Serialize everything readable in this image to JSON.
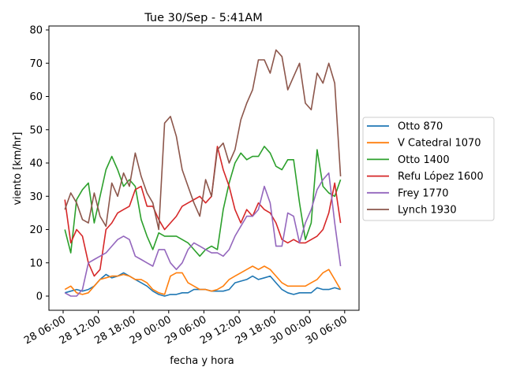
{
  "chart_data": {
    "type": "line",
    "title": "Tue 30/Sep - 5:41AM",
    "xlabel": "fecha y hora",
    "ylabel": "viento [km/hr]",
    "ylim": [
      -2,
      81
    ],
    "yticks": [
      0,
      10,
      20,
      30,
      40,
      50,
      60,
      70,
      80
    ],
    "xticks": [
      "28 06:00",
      "28 12:00",
      "28 18:00",
      "29 00:00",
      "29 06:00",
      "29 12:00",
      "29 18:00",
      "30 00:00",
      "30 06:00"
    ],
    "x_unit": "hours since 28 06:00",
    "x_start_hours": 0.3,
    "x_step_hours": 1.0,
    "legend_position": "right",
    "grid": false,
    "series": [
      {
        "name": "Otto 870",
        "color": "#1f77b4",
        "values": [
          1,
          1.5,
          2,
          1.5,
          2,
          3,
          5,
          6.5,
          5.5,
          6,
          7,
          6,
          5,
          4,
          3,
          1.5,
          0.5,
          0,
          0.5,
          0.5,
          1,
          1,
          2,
          2,
          2,
          1.5,
          1.5,
          1.5,
          2,
          4,
          4.5,
          5,
          6,
          5,
          5.5,
          6,
          4,
          2,
          1,
          0.5,
          1,
          1,
          1,
          2.5,
          2,
          2,
          2.5,
          2
        ]
      },
      {
        "name": "V Catedral 1070",
        "color": "#ff7f0e",
        "values": [
          2,
          3,
          1,
          0.5,
          1,
          3,
          5,
          5.5,
          6,
          6,
          6.5,
          6,
          5,
          5,
          4,
          2,
          1,
          0.5,
          6,
          7,
          7,
          4,
          3,
          2,
          2,
          1.5,
          2,
          3,
          5,
          6,
          7,
          8,
          9,
          8,
          9,
          8,
          6,
          4,
          3,
          3,
          3,
          3,
          4,
          5,
          7,
          8,
          5,
          2
        ]
      },
      {
        "name": "Otto 1400",
        "color": "#2ca02c",
        "values": [
          20,
          13,
          29,
          32,
          34,
          22,
          30,
          38,
          42,
          38,
          33,
          35,
          33,
          23,
          18,
          14,
          19,
          18,
          18,
          18,
          17,
          16,
          14,
          12,
          14,
          15,
          14,
          26,
          34,
          40,
          43,
          41,
          42,
          42,
          45,
          43,
          39,
          38,
          41,
          41,
          28,
          17,
          22,
          44,
          33,
          31,
          30,
          35
        ]
      },
      {
        "name": "Refu López 1600",
        "color": "#d62728",
        "values": [
          29,
          16,
          20,
          18,
          10,
          6,
          8,
          20,
          22,
          25,
          26,
          27,
          32,
          33,
          27,
          27,
          23,
          20,
          22,
          24,
          27,
          28,
          29,
          30,
          28,
          30,
          45,
          38,
          33,
          26,
          22,
          26,
          24,
          28,
          26,
          25,
          22,
          17,
          16,
          17,
          16,
          16,
          17,
          18,
          20,
          25,
          34,
          22
        ]
      },
      {
        "name": "Frey 1770",
        "color": "#9467bd",
        "values": [
          1,
          0,
          0,
          2,
          10,
          11,
          12,
          13,
          15,
          17,
          18,
          17,
          12,
          11,
          10,
          9,
          14,
          14,
          10,
          8,
          10,
          14,
          16,
          15,
          14,
          13,
          13,
          12,
          14,
          18,
          21,
          24,
          24,
          26,
          33,
          28,
          15,
          15,
          25,
          24,
          16,
          22,
          26,
          32,
          35,
          37,
          22,
          9
        ]
      },
      {
        "name": "Lynch 1930",
        "color": "#8c564b",
        "values": [
          26,
          31,
          28,
          23,
          22,
          31,
          24,
          21,
          34,
          30,
          37,
          33,
          43,
          36,
          31,
          28,
          20,
          52,
          54,
          48,
          38,
          33,
          28,
          24,
          35,
          30,
          44,
          46,
          40,
          44,
          53,
          58,
          62,
          71,
          71,
          67,
          74,
          72,
          62,
          66,
          70,
          58,
          56,
          67,
          64,
          70,
          64,
          36
        ]
      }
    ]
  }
}
